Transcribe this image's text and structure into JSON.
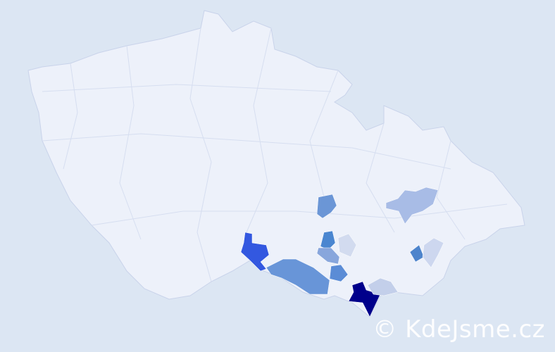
{
  "map": {
    "background_color": "#dce6f3",
    "land_color": "#edf1fa",
    "border_color": "#c9d3ea",
    "highlighted_regions": [
      {
        "id": "r1",
        "color": "#00008b"
      },
      {
        "id": "r2",
        "color": "#3358e0"
      },
      {
        "id": "r3",
        "color": "#6895d8"
      },
      {
        "id": "r4",
        "color": "#6b96d6"
      },
      {
        "id": "r5",
        "color": "#4a86d0"
      },
      {
        "id": "r6",
        "color": "#88a6dc"
      },
      {
        "id": "r7",
        "color": "#5b8cd6"
      },
      {
        "id": "r8",
        "color": "#a8bce6"
      },
      {
        "id": "r9",
        "color": "#d2dbef"
      },
      {
        "id": "r10",
        "color": "#4d84cc"
      },
      {
        "id": "r11",
        "color": "#cdd7ef"
      },
      {
        "id": "r12",
        "color": "#c3cfea"
      }
    ]
  },
  "watermark": "© KdeJsme.cz"
}
